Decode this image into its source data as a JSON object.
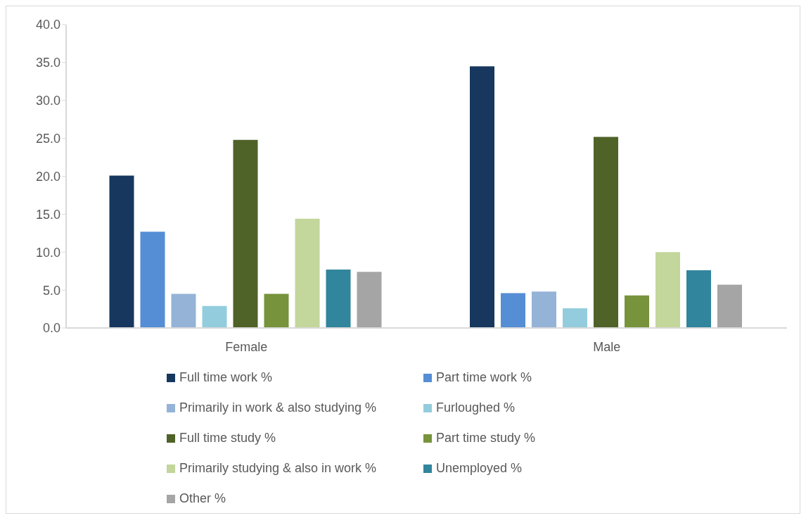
{
  "chart_data": {
    "type": "bar",
    "categories": [
      "Female",
      "Male"
    ],
    "series": [
      {
        "name": "Full time work %",
        "color": "#17375e",
        "values": [
          20.1,
          34.5
        ]
      },
      {
        "name": "Part time work %",
        "color": "#558ed5",
        "values": [
          12.7,
          4.6
        ]
      },
      {
        "name": "Primarily in work & also studying %",
        "color": "#95b3d7",
        "values": [
          4.5,
          4.8
        ]
      },
      {
        "name": "Furloughed %",
        "color": "#93cddd",
        "values": [
          2.9,
          2.6
        ]
      },
      {
        "name": "Full time study %",
        "color": "#4f6228",
        "values": [
          24.8,
          25.2
        ]
      },
      {
        "name": "Part time study %",
        "color": "#77933c",
        "values": [
          4.5,
          4.3
        ]
      },
      {
        "name": "Primarily studying & also in work %",
        "color": "#c3d69b",
        "values": [
          14.4,
          10.0
        ]
      },
      {
        "name": "Unemployed %",
        "color": "#31859c",
        "values": [
          7.7,
          7.6
        ]
      },
      {
        "name": "Other %",
        "color": "#a5a5a5",
        "values": [
          7.4,
          5.7
        ]
      }
    ],
    "ylim": [
      0,
      40
    ],
    "yticks": [
      {
        "value": 0,
        "label": "0.0"
      },
      {
        "value": 5,
        "label": "5.0"
      },
      {
        "value": 10,
        "label": "10.0"
      },
      {
        "value": 15,
        "label": "15.0"
      },
      {
        "value": 20,
        "label": "20.0"
      },
      {
        "value": 25,
        "label": "25.0"
      },
      {
        "value": 30,
        "label": "30.0"
      },
      {
        "value": 35,
        "label": "35.0"
      },
      {
        "value": 40,
        "label": "40.0"
      }
    ],
    "grid": false,
    "legend": "bottom"
  }
}
